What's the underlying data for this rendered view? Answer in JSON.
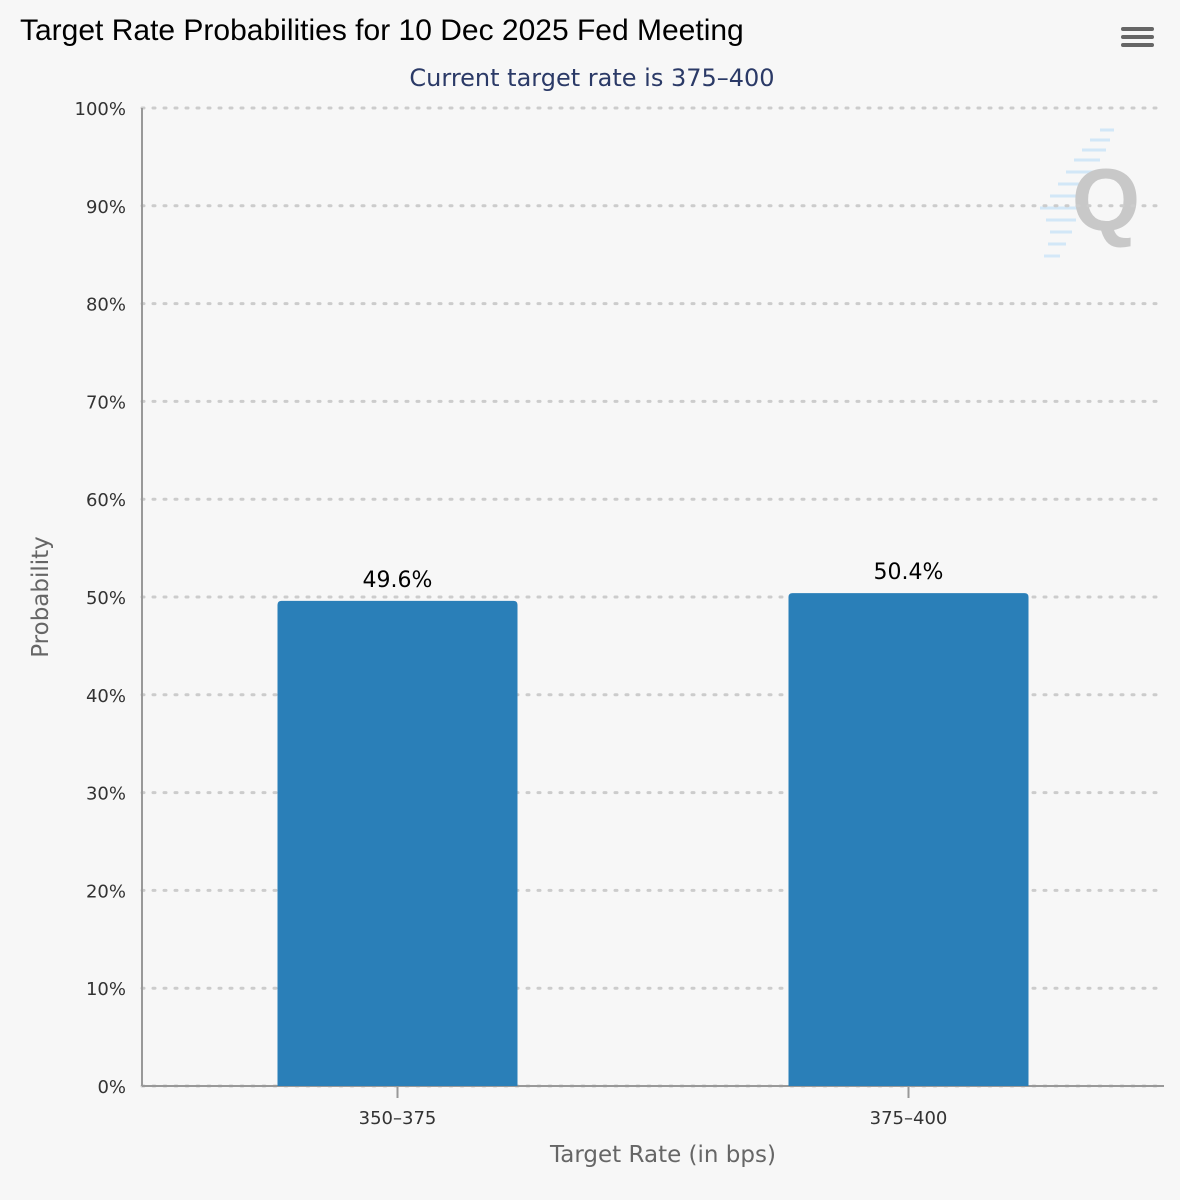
{
  "title": "Target Rate Probabilities for 10 Dec 2025 Fed Meeting",
  "subtitle": "Current target rate is 375–400",
  "colors": {
    "bar": "#2a7fb8",
    "subtitle": "#2b3a67",
    "grid": "#cccccc",
    "axis": "#999999",
    "background": "#f7f7f7"
  },
  "icons": {
    "menu": "hamburger-icon",
    "watermark": "q-logo-icon"
  },
  "chart_data": {
    "type": "bar",
    "title": "Target Rate Probabilities for 10 Dec 2025 Fed Meeting",
    "subtitle": "Current target rate is 375–400",
    "xlabel": "Target Rate (in bps)",
    "ylabel": "Probability",
    "categories": [
      "350–375",
      "375–400"
    ],
    "values": [
      49.6,
      50.4
    ],
    "data_labels": [
      "49.6%",
      "50.4%"
    ],
    "ylim": [
      0,
      100
    ],
    "yticks": [
      0,
      10,
      20,
      30,
      40,
      50,
      60,
      70,
      80,
      90,
      100
    ],
    "ytick_labels": [
      "0%",
      "10%",
      "20%",
      "30%",
      "40%",
      "50%",
      "60%",
      "70%",
      "80%",
      "90%",
      "100%"
    ],
    "grid": true,
    "legend": "none"
  }
}
